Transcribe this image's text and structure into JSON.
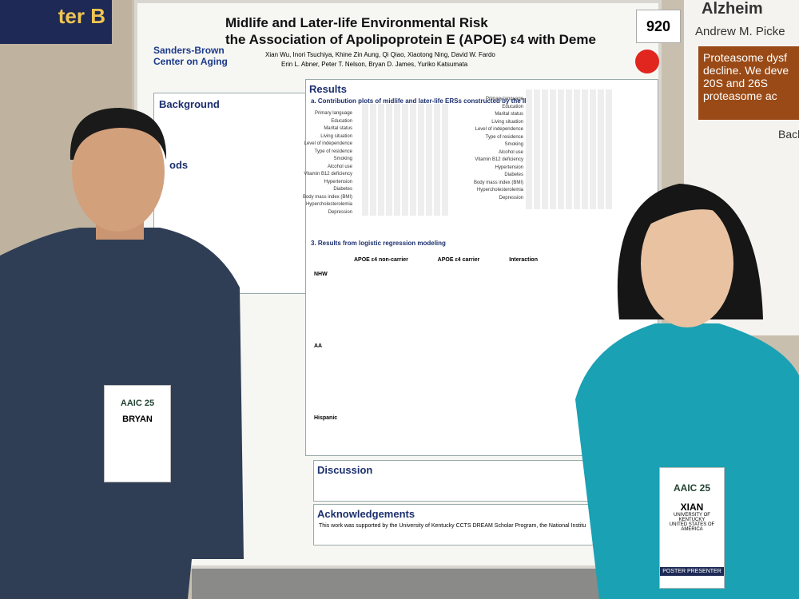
{
  "banner": {
    "text": "ter B"
  },
  "poster_number": "920",
  "poster": {
    "title_lines": [
      "Midlife and Later-life Environmental Risk",
      "the Association of Apolipoprotein E (APOE) ε4 with Deme"
    ],
    "authors": "Xian Wu, Inori Tsuchiya, Khine Zin Aung, Qi Qiao, Xiaotong Ning, David W. Fardo",
    "authors2": "Erin L. Abner, Peter T. Nelson, Bryan D. James, Yuriko Katsumata",
    "logo": "Sanders-Brown Center on Aging",
    "sections": {
      "background": "Background",
      "methods": "ods",
      "results": "Results",
      "discussion": "Discussion",
      "acknowledgements": "Acknowledgements"
    },
    "results_a": "a. Contribution plots of midlife and later-life ERSs constructed by the IRT-based GPCM",
    "results_3": "3. Results from logistic regression modeling",
    "factors": [
      "Primary language",
      "Education",
      "Marital status",
      "Living situation",
      "Level of independence",
      "Type of residence",
      "Smoking",
      "Alcohol use",
      "Vitamin B12 deficiency",
      "Hypertension",
      "Diabetes",
      "Body mass index (BMI)",
      "Hypercholesterolemia",
      "Depression"
    ],
    "table_headers": [
      "APOE ε4 non-carrier",
      "APOE ε4 carrier",
      "Interaction"
    ],
    "table_groups": [
      "NHW",
      "AA",
      "Hispanic"
    ],
    "ack_text": "This work was supported by the University of Kentucky CCTS DREAM Scholar Program, the National Institu"
  },
  "right_poster": {
    "title": "Alzheim",
    "author": "Andrew M. Picke",
    "box_lines": [
      "Proteasome dysf",
      "decline. We deve",
      "20S and 26S",
      "proteasome ac"
    ],
    "back": "Back"
  },
  "badges": [
    {
      "event": "AAIC 25",
      "name": "BRYAN"
    },
    {
      "event": "AAIC 25",
      "name": "XIAN",
      "org": "UNIVERSITY OF KENTUCKY",
      "country": "UNITED STATES OF AMERICA",
      "role": "POSTER PRESENTER"
    }
  ]
}
